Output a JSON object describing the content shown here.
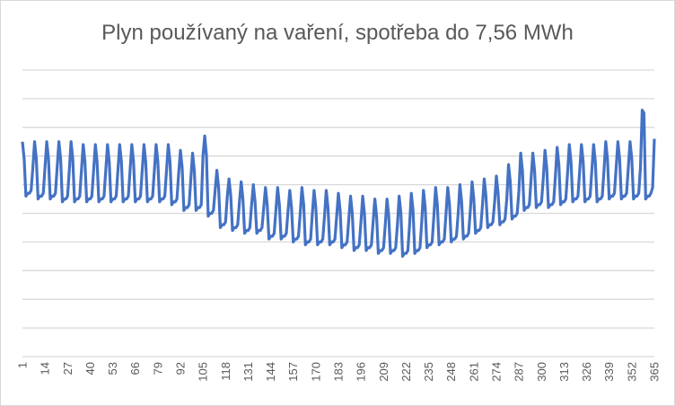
{
  "chart_data": {
    "type": "line",
    "title": "Plyn používaný na vaření, spotřeba do 7,56 MWh",
    "xlabel": "",
    "ylabel": "",
    "x_range": [
      1,
      365
    ],
    "ylim": [
      0,
      10
    ],
    "y_tick_labels_shown": false,
    "grid": true,
    "legend": "none",
    "line_color": "#4472C4",
    "grid_color": "#d9d9d9",
    "x_tick_labels": [
      "1",
      "14",
      "27",
      "40",
      "53",
      "66",
      "79",
      "92",
      "105",
      "118",
      "131",
      "144",
      "157",
      "170",
      "183",
      "196",
      "209",
      "222",
      "235",
      "248",
      "261",
      "274",
      "287",
      "300",
      "313",
      "326",
      "339",
      "352",
      "365"
    ],
    "series": [
      {
        "values": [
          7.5,
          6.9,
          5.6,
          5.7,
          5.7,
          5.8,
          6.6,
          7.5,
          6.9,
          5.5,
          5.6,
          5.6,
          5.7,
          6.6,
          7.5,
          6.9,
          5.5,
          5.6,
          5.6,
          5.7,
          6.6,
          7.5,
          6.9,
          5.4,
          5.5,
          5.5,
          5.6,
          6.5,
          7.5,
          6.9,
          5.4,
          5.5,
          5.5,
          5.6,
          6.5,
          7.4,
          6.8,
          5.4,
          5.5,
          5.5,
          5.6,
          6.5,
          7.4,
          6.8,
          5.4,
          5.5,
          5.5,
          5.6,
          6.5,
          7.4,
          6.8,
          5.4,
          5.5,
          5.5,
          5.6,
          6.5,
          7.4,
          6.8,
          5.4,
          5.5,
          5.5,
          5.6,
          6.5,
          7.4,
          6.8,
          5.4,
          5.5,
          5.5,
          5.6,
          6.5,
          7.4,
          6.8,
          5.4,
          5.5,
          5.5,
          5.6,
          6.5,
          7.4,
          6.8,
          5.4,
          5.5,
          5.5,
          5.6,
          6.5,
          7.4,
          6.8,
          5.3,
          5.4,
          5.4,
          5.5,
          6.4,
          7.2,
          6.6,
          5.1,
          5.2,
          5.2,
          5.3,
          6.2,
          7.1,
          6.5,
          5.1,
          5.2,
          5.2,
          5.3,
          7.0,
          7.7,
          7.0,
          4.9,
          5.0,
          5.0,
          5.1,
          5.8,
          6.5,
          5.9,
          4.5,
          4.6,
          4.6,
          4.7,
          5.6,
          6.2,
          5.6,
          4.4,
          4.5,
          4.5,
          4.6,
          5.4,
          6.1,
          5.5,
          4.3,
          4.4,
          4.4,
          4.5,
          5.3,
          6.0,
          5.4,
          4.3,
          4.4,
          4.4,
          4.5,
          5.2,
          5.9,
          5.3,
          4.1,
          4.2,
          4.2,
          4.3,
          5.1,
          5.9,
          5.3,
          4.1,
          4.2,
          4.2,
          4.3,
          5.1,
          5.8,
          5.2,
          4.0,
          4.1,
          4.1,
          4.2,
          5.0,
          5.9,
          5.3,
          3.9,
          4.0,
          4.0,
          4.1,
          5.0,
          5.8,
          5.2,
          3.9,
          4.0,
          4.0,
          4.1,
          4.9,
          5.8,
          5.2,
          3.9,
          4.0,
          4.0,
          4.1,
          4.9,
          5.7,
          5.1,
          3.8,
          3.9,
          3.9,
          4.0,
          4.8,
          5.6,
          5.0,
          3.7,
          3.8,
          3.8,
          3.9,
          4.7,
          5.6,
          5.0,
          3.7,
          3.8,
          3.8,
          3.9,
          4.7,
          5.5,
          4.9,
          3.6,
          3.7,
          3.7,
          3.8,
          4.6,
          5.5,
          4.9,
          3.6,
          3.7,
          3.7,
          3.8,
          4.6,
          5.6,
          5.0,
          3.5,
          3.6,
          3.6,
          3.7,
          4.6,
          5.7,
          5.1,
          3.6,
          3.7,
          3.7,
          3.8,
          4.7,
          5.8,
          5.2,
          3.8,
          3.9,
          3.9,
          4.0,
          4.9,
          5.9,
          5.3,
          3.9,
          4.0,
          4.0,
          4.1,
          5.0,
          5.9,
          5.3,
          4.0,
          4.1,
          4.1,
          4.2,
          5.0,
          6.0,
          5.4,
          4.1,
          4.2,
          4.2,
          4.3,
          5.1,
          6.1,
          5.5,
          4.3,
          4.4,
          4.4,
          4.5,
          5.3,
          6.2,
          5.6,
          4.5,
          4.6,
          4.6,
          4.7,
          5.4,
          6.3,
          5.7,
          4.6,
          4.7,
          4.7,
          4.8,
          5.5,
          6.7,
          6.1,
          4.8,
          4.9,
          4.9,
          5.0,
          5.8,
          7.1,
          6.5,
          5.1,
          5.2,
          5.2,
          5.3,
          6.2,
          7.1,
          6.5,
          5.2,
          5.3,
          5.3,
          5.4,
          6.2,
          7.2,
          6.6,
          5.2,
          5.3,
          5.3,
          5.4,
          6.3,
          7.3,
          6.7,
          5.3,
          5.4,
          5.4,
          5.5,
          6.4,
          7.4,
          6.8,
          5.4,
          5.5,
          5.5,
          5.6,
          6.5,
          7.4,
          6.8,
          5.4,
          5.5,
          5.5,
          5.6,
          6.5,
          7.4,
          6.8,
          5.4,
          5.5,
          5.5,
          5.6,
          6.5,
          7.5,
          6.9,
          5.5,
          5.6,
          5.6,
          5.7,
          6.6,
          7.5,
          6.9,
          5.5,
          5.6,
          5.6,
          5.7,
          6.6,
          7.5,
          6.9,
          5.5,
          5.6,
          5.6,
          5.7,
          6.6,
          8.6,
          8.5,
          5.5,
          5.6,
          5.6,
          5.7,
          5.9,
          7.6
        ]
      }
    ]
  }
}
